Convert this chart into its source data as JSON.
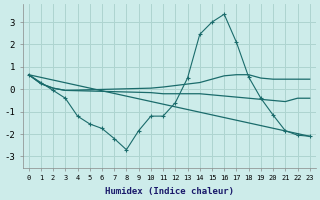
{
  "xlabel": "Humidex (Indice chaleur)",
  "background_color": "#cdecea",
  "grid_color": "#aed4d0",
  "line_color": "#1a6b6b",
  "xlim": [
    -0.5,
    23.5
  ],
  "ylim": [
    -3.5,
    3.8
  ],
  "yticks": [
    -3,
    -2,
    -1,
    0,
    1,
    2,
    3
  ],
  "xticks": [
    0,
    1,
    2,
    3,
    4,
    5,
    6,
    7,
    8,
    9,
    10,
    11,
    12,
    13,
    14,
    15,
    16,
    17,
    18,
    19,
    20,
    21,
    22,
    23
  ],
  "curves": [
    {
      "x": [
        0,
        1,
        2,
        3,
        4,
        5,
        6,
        7,
        8,
        9,
        10,
        11,
        12,
        13,
        14,
        15,
        16,
        17,
        18,
        19,
        20,
        21,
        22,
        23
      ],
      "y": [
        0.65,
        0.3,
        -0.05,
        -0.4,
        -1.2,
        -1.55,
        -1.75,
        -2.2,
        -2.7,
        -1.85,
        -1.2,
        -1.2,
        -0.6,
        0.5,
        2.45,
        3.0,
        3.35,
        2.1,
        0.55,
        -0.4,
        -1.15,
        -1.85,
        -2.05,
        -2.1
      ],
      "has_marker": true
    },
    {
      "x": [
        0,
        1,
        2,
        3,
        10,
        11,
        14,
        15,
        16,
        17,
        18,
        19,
        20,
        21,
        22,
        23
      ],
      "y": [
        0.65,
        0.25,
        0.05,
        -0.05,
        0.05,
        0.1,
        0.3,
        0.45,
        0.6,
        0.65,
        0.65,
        0.5,
        0.45,
        0.45,
        0.45,
        0.45
      ],
      "has_marker": false
    },
    {
      "x": [
        0,
        1,
        2,
        3,
        10,
        11,
        14,
        15,
        16,
        17,
        18,
        19,
        20,
        21,
        22,
        23
      ],
      "y": [
        0.65,
        0.25,
        0.05,
        -0.05,
        -0.15,
        -0.2,
        -0.2,
        -0.25,
        -0.3,
        -0.35,
        -0.4,
        -0.45,
        -0.5,
        -0.55,
        -0.4,
        -0.4
      ],
      "has_marker": false
    },
    {
      "x": [
        0,
        23
      ],
      "y": [
        0.65,
        -2.1
      ],
      "has_marker": false
    }
  ]
}
